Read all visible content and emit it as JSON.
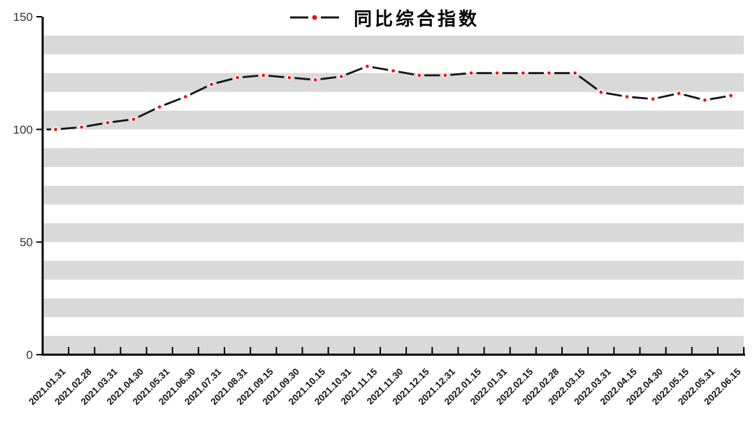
{
  "chart_data": {
    "type": "line",
    "title": "同比综合指数",
    "legend_position": "top-center",
    "line_style": "long-dash-with-red-dot-markers",
    "grid": "alternating-horizontal-gray-bands",
    "band_color": "#d9d9d9",
    "line_color": "#141414",
    "marker_color": "#fe0000",
    "axis_color": "#000000",
    "ylim": [
      0,
      150
    ],
    "yticks": [
      0,
      50,
      100,
      150
    ],
    "x_label_rotation": 45,
    "categories": [
      "2021.01.31",
      "2021.02.28",
      "2021.03.31",
      "2021.04.30",
      "2021.05.31",
      "2021.06.30",
      "2021.07.31",
      "2021.08.31",
      "2021.09.15",
      "2021.09.30",
      "2021.10.15",
      "2021.10.31",
      "2021.11.15",
      "2021.11.30",
      "2021.12.15",
      "2021.12.31",
      "2022.01.15",
      "2022.01.31",
      "2022.02.15",
      "2022.02.28",
      "2022.03.15",
      "2022.03.31",
      "2022.04.15",
      "2022.04.30",
      "2022.05.15",
      "2022.05.31",
      "2022.06.15"
    ],
    "series": [
      {
        "name": "同比综合指数",
        "values": [
          100,
          101,
          103,
          104.5,
          110,
          114.5,
          120,
          123,
          124,
          123,
          122,
          123.5,
          128,
          126,
          124,
          124,
          125,
          125,
          125,
          125,
          125,
          116.5,
          114.5,
          113.5,
          116,
          113,
          115
        ]
      }
    ]
  }
}
